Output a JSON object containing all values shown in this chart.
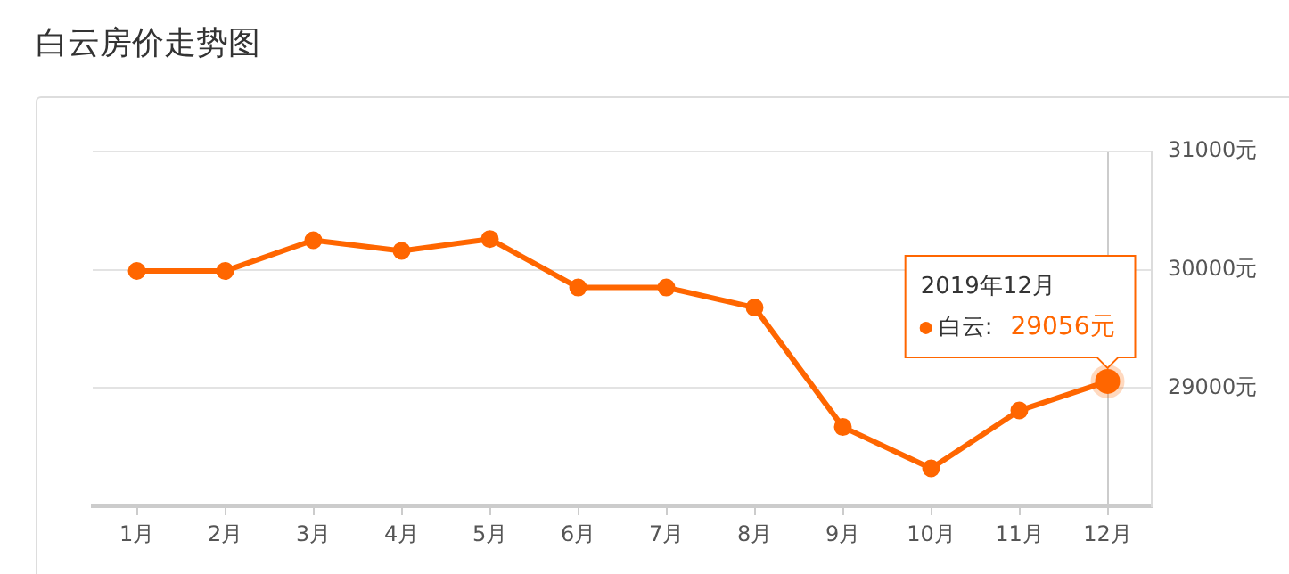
{
  "chart_data": {
    "type": "line",
    "title": "白云房价走势图",
    "categories": [
      "1月",
      "2月",
      "3月",
      "4月",
      "5月",
      "6月",
      "7月",
      "8月",
      "9月",
      "10月",
      "11月",
      "12月"
    ],
    "series": [
      {
        "name": "白云:",
        "color": "#ff6600",
        "values": [
          29990,
          29990,
          30250,
          30160,
          30260,
          29850,
          29850,
          29680,
          28670,
          28320,
          28810,
          29056
        ],
        "value_labels": [
          null,
          null,
          null,
          null,
          null,
          null,
          null,
          null,
          null,
          null,
          null,
          "29056元"
        ]
      }
    ],
    "ylim": [
      28000,
      31000
    ],
    "yticks": [
      {
        "value": 29000,
        "label": "29000元"
      },
      {
        "value": 30000,
        "label": "30000元"
      },
      {
        "value": 31000,
        "label": "31000元"
      }
    ],
    "grid": "y",
    "marker": "circle",
    "legend": "top right",
    "annotations": [
      "2019年12月"
    ],
    "ref_lines": [
      {
        "axis": "x",
        "value": "12月",
        "color": "#cccccc"
      }
    ]
  }
}
